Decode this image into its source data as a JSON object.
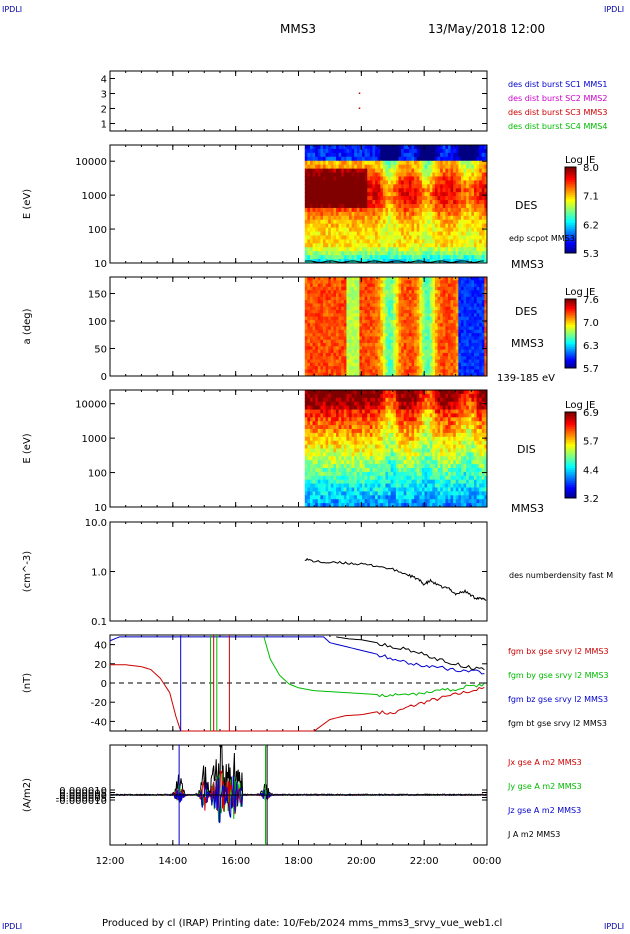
{
  "header": {
    "corner_tl": "IPDLI",
    "corner_tr": "IPDLI",
    "corner_bl": "IPDLI",
    "corner_br": "IPDLI",
    "spacecraft": "MMS3",
    "datetime": "13/May/2018 12:00"
  },
  "footer": {
    "credit": "Produced by cl (IRAP)   Printing date: 10/Feb/2024   mms_mms3_srvy_vue_web1.cl"
  },
  "x_axis": {
    "ticks": [
      "12:00",
      "14:00",
      "16:00",
      "18:00",
      "20:00",
      "22:00",
      "00:00"
    ],
    "range_hours": [
      12,
      24
    ]
  },
  "colors": {
    "black": "#000000",
    "blue": "#0000cc",
    "red": "#cc0000",
    "green": "#00bb00",
    "magenta": "#cc00cc",
    "dark_red": "#aa0000"
  },
  "chart_data": [
    {
      "type": "scatter",
      "id": "burst",
      "ylim": [
        0.5,
        4.5
      ],
      "yticks": [
        "1",
        "2",
        "3",
        "4"
      ],
      "series": [
        {
          "name": "des dist burst SC1 MMS1",
          "color": "#0000cc",
          "x": [],
          "y": []
        },
        {
          "name": "des dist burst SC2 MMS2",
          "color": "#cc00cc",
          "x": [],
          "y": []
        },
        {
          "name": "des dist burst SC3 MMS3",
          "color": "#cc0000",
          "x": [
            19.95,
            19.95
          ],
          "y": [
            3.0,
            2.0
          ]
        },
        {
          "name": "des dist burst SC4 MMS4",
          "color": "#00bb00",
          "x": [],
          "y": []
        }
      ]
    },
    {
      "type": "heatmap",
      "id": "des_energy",
      "ylabel": "E (eV)",
      "yscale": "log",
      "ylim": [
        10,
        30000
      ],
      "yticks": [
        "10000",
        "1000",
        "100",
        "10"
      ],
      "right_labels": [
        "DES",
        "edp scpot MMS3",
        "MMS3"
      ],
      "colorbar": {
        "title": "Log JE",
        "ticks": [
          "8.0",
          "7.1",
          "6.2",
          "5.3"
        ],
        "range": [
          5.3,
          8.0
        ]
      },
      "data_start_hour": 18.2
    },
    {
      "type": "heatmap",
      "id": "des_pitch",
      "ylabel": "a (deg)",
      "ylim": [
        0,
        180
      ],
      "yticks": [
        "150",
        "100",
        "50",
        "0"
      ],
      "right_labels": [
        "DES",
        "MMS3",
        "139-185 eV"
      ],
      "colorbar": {
        "title": "Log JE",
        "ticks": [
          "7.6",
          "7.0",
          "6.3",
          "5.7"
        ],
        "range": [
          5.7,
          7.6
        ]
      },
      "data_start_hour": 18.2
    },
    {
      "type": "heatmap",
      "id": "dis_energy",
      "ylabel": "E (eV)",
      "yscale": "log",
      "ylim": [
        10,
        25000
      ],
      "yticks": [
        "10000",
        "1000",
        "100",
        "10"
      ],
      "right_labels": [
        "DIS",
        "MMS3"
      ],
      "colorbar": {
        "title": "Log JE",
        "ticks": [
          "6.9",
          "5.7",
          "4.4",
          "3.2"
        ],
        "range": [
          3.2,
          6.9
        ]
      },
      "data_start_hour": 18.2
    },
    {
      "type": "line",
      "id": "density",
      "ylabel": "(cm^-3)",
      "yscale": "log",
      "ylim": [
        0.1,
        10
      ],
      "yticks": [
        "10.0",
        "1.0",
        "0.1"
      ],
      "series": [
        {
          "name": "des numberdensity fast M",
          "color": "#000000",
          "x": [
            18.2,
            18.5,
            19.0,
            19.5,
            20.0,
            20.5,
            21.0,
            21.5,
            21.8,
            22.0,
            22.2,
            22.5,
            22.8,
            23.0,
            23.3,
            23.6,
            23.8,
            24.0
          ],
          "y": [
            1.8,
            1.6,
            1.5,
            1.5,
            1.4,
            1.3,
            1.1,
            0.85,
            0.7,
            0.55,
            0.65,
            0.5,
            0.45,
            0.35,
            0.4,
            0.3,
            0.28,
            0.27
          ]
        }
      ]
    },
    {
      "type": "line",
      "id": "fgm",
      "ylabel": "(nT)",
      "ylim": [
        -50,
        50
      ],
      "yticks": [
        "40",
        "20",
        "0",
        "-20",
        "-40"
      ],
      "series": [
        {
          "name": "fgm bx gse srvy l2 MMS3",
          "color": "#cc0000",
          "x": [
            12.0,
            12.5,
            13.0,
            13.3,
            13.6,
            13.9,
            14.1,
            14.25,
            18.5,
            19.0,
            19.5,
            20.0,
            20.5,
            21.0,
            21.5,
            22.0,
            22.5,
            23.0,
            23.5,
            24.0
          ],
          "y": [
            19,
            19,
            17,
            14,
            5,
            -10,
            -35,
            -50,
            -50,
            -38,
            -34,
            -33,
            -30,
            -32,
            -25,
            -20,
            -16,
            -12,
            -8,
            -5
          ]
        },
        {
          "name": "fgm by gse srvy l2 MMS3",
          "color": "#00bb00",
          "x": [
            16.9,
            17.1,
            17.4,
            17.7,
            18.0,
            18.5,
            19.0,
            19.5,
            20.0,
            20.5,
            21.0,
            21.5,
            22.0,
            22.5,
            23.0,
            23.5,
            24.0
          ],
          "y": [
            48,
            25,
            8,
            -1,
            -5,
            -8,
            -9,
            -10,
            -11,
            -12,
            -13,
            -12,
            -10,
            -8,
            -6,
            -3,
            -2
          ]
        },
        {
          "name": "fgm bz gse srvy l2 MMS3",
          "color": "#0000cc",
          "x": [
            12.0,
            12.3,
            18.8,
            19.0,
            19.5,
            20.0,
            20.5,
            21.0,
            21.5,
            22.0,
            22.5,
            23.0,
            23.5,
            24.0
          ],
          "y": [
            44,
            48,
            48,
            42,
            38,
            34,
            30,
            25,
            21,
            18,
            16,
            14,
            12,
            11
          ]
        },
        {
          "name": "fgm bt gse srvy l2 MMS3",
          "color": "#000000",
          "x": [
            19.2,
            19.6,
            20.0,
            20.5,
            21.0,
            21.5,
            22.0,
            22.5,
            23.0,
            23.5,
            24.0
          ],
          "y": [
            48,
            46,
            45,
            42,
            38,
            34,
            30,
            24,
            20,
            16,
            14
          ]
        }
      ]
    },
    {
      "type": "line",
      "id": "current",
      "ylabel": "(A/m2)",
      "ylim": [
        -0.0001,
        0.0001
      ],
      "yticks": [
        "0.000010",
        "0.000005",
        "0.000000",
        "-0.000005",
        "-0.000010"
      ],
      "series": [
        {
          "name": "Jx gse A m2 MMS3",
          "color": "#cc0000"
        },
        {
          "name": "Jy gse A m2 MMS3",
          "color": "#00bb00"
        },
        {
          "name": "Jz gse A m2 MMS3",
          "color": "#0000cc"
        },
        {
          "name": "J A m2 MMS3",
          "color": "#000000"
        }
      ]
    }
  ]
}
